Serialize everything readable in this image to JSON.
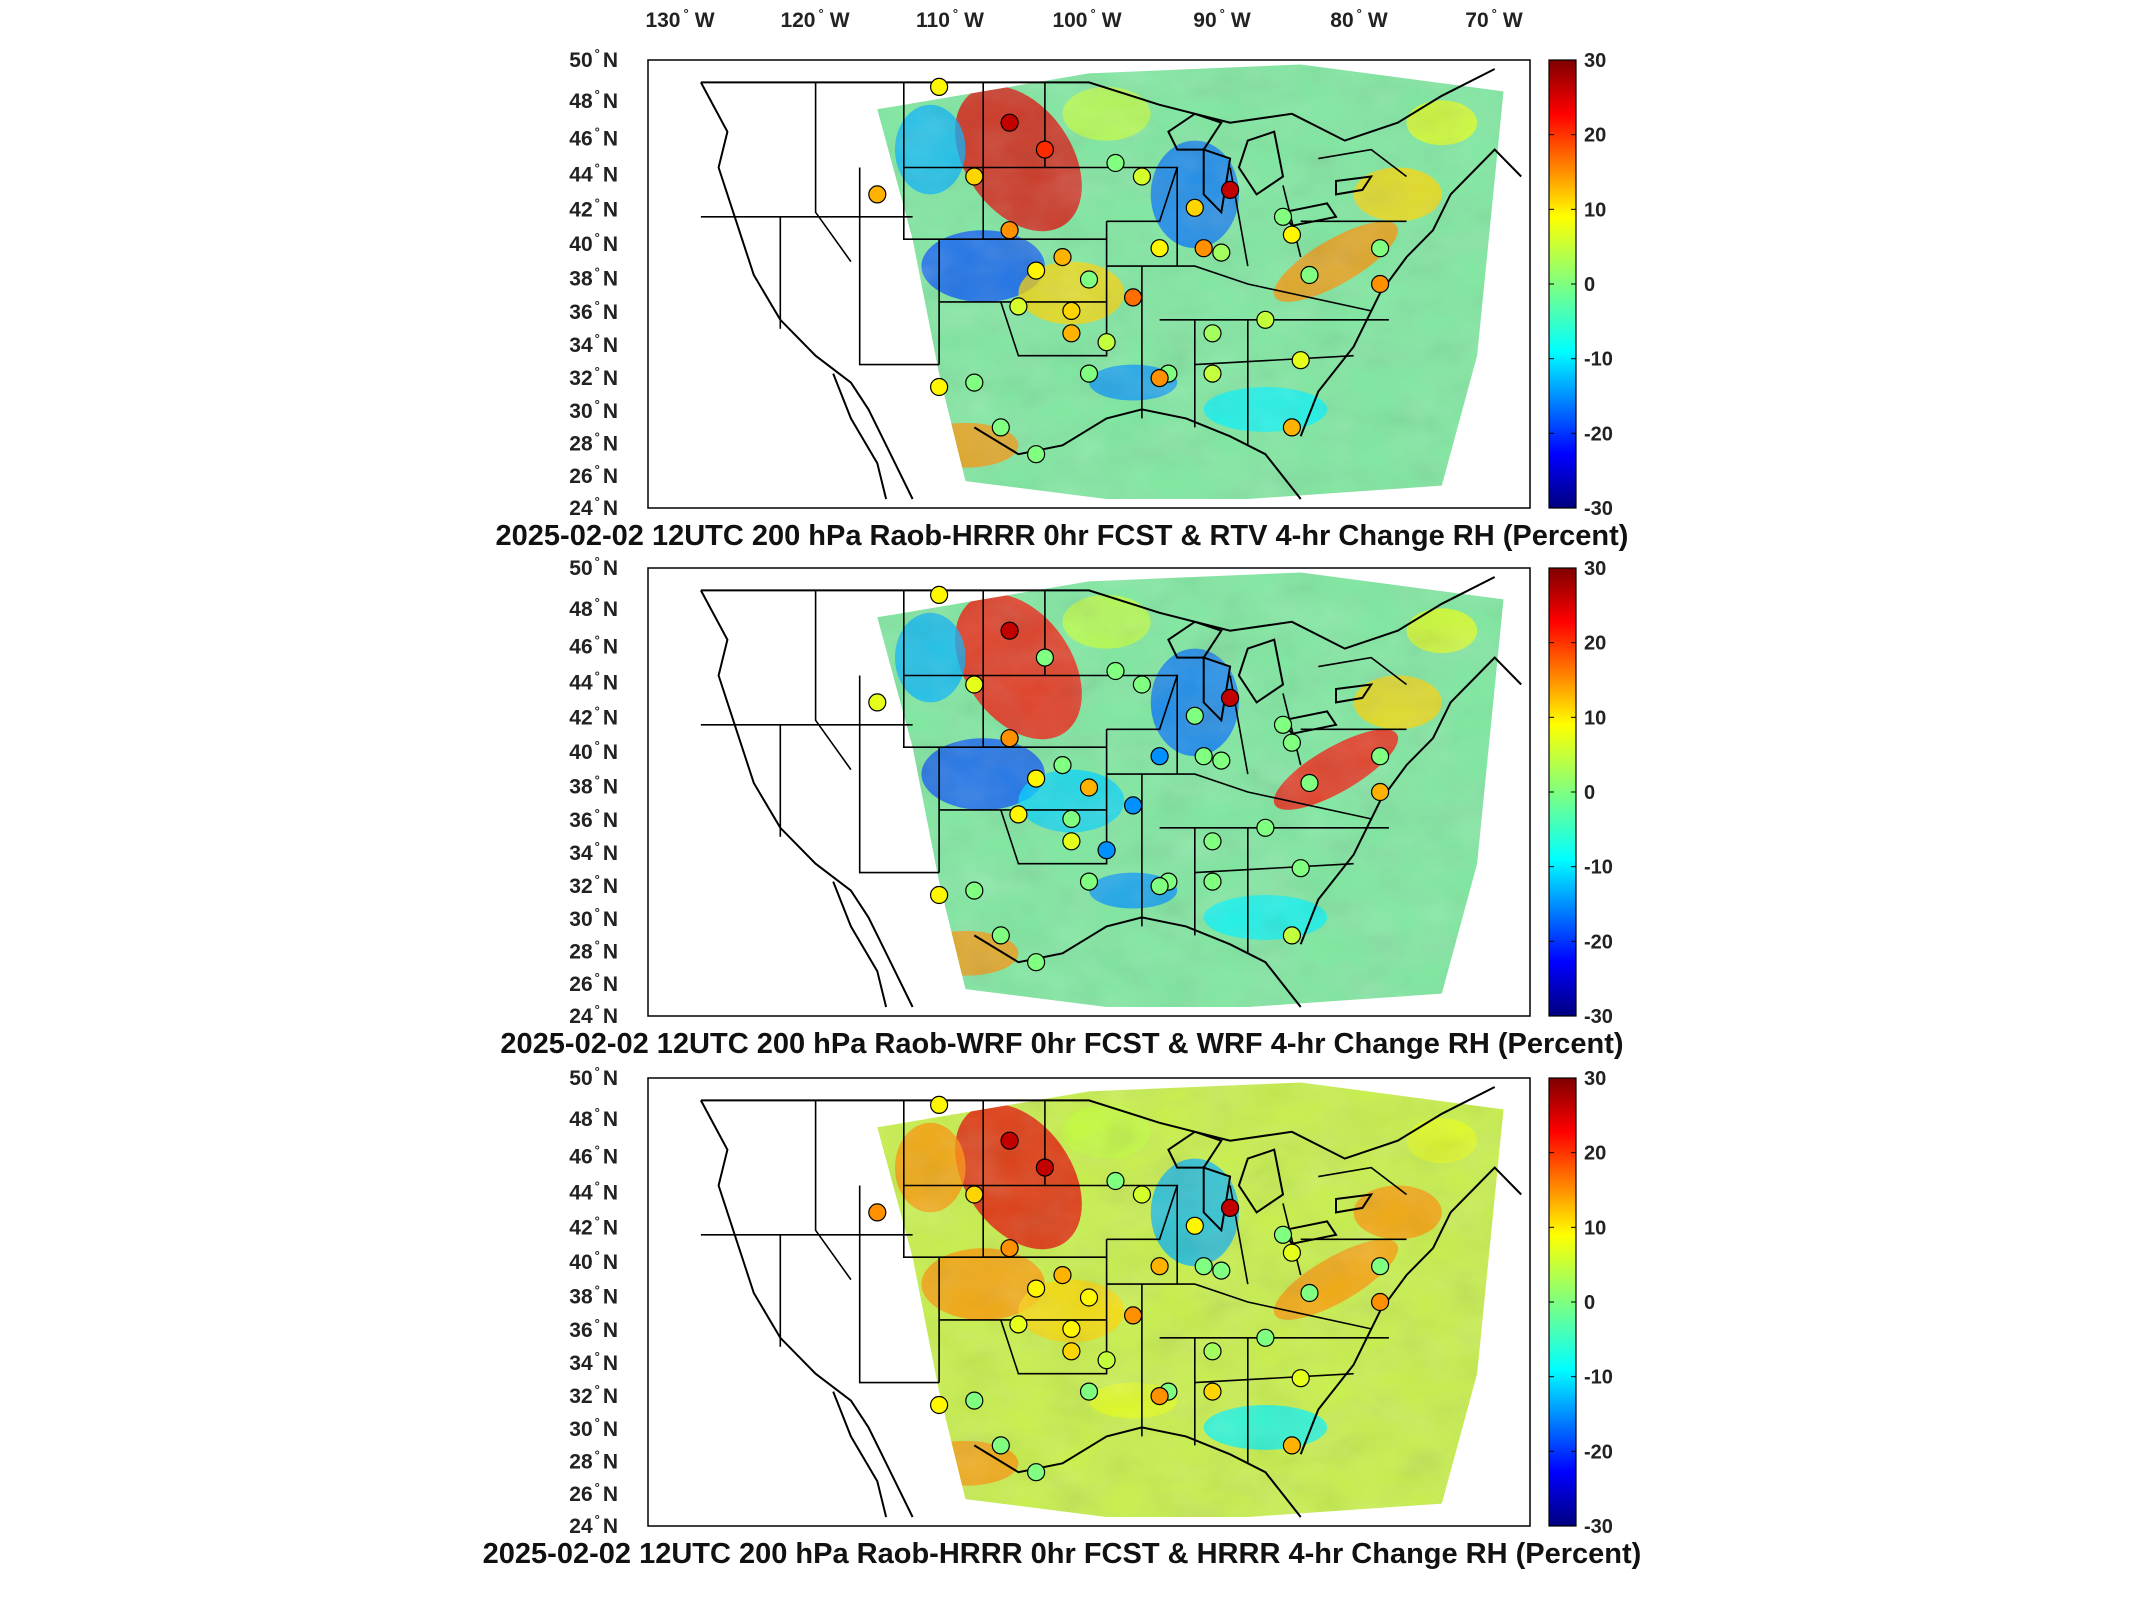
{
  "lon_labels": [
    "130",
    "120",
    "110",
    "100",
    "90",
    "80",
    "70"
  ],
  "lon_hemisphere": "W",
  "lat_labels": [
    "50",
    "48",
    "46",
    "44",
    "42",
    "40",
    "38",
    "36",
    "34",
    "32",
    "30",
    "28",
    "26",
    "24"
  ],
  "lat_hemisphere": "N",
  "degree_symbol": "°",
  "colorbar": {
    "ticks": [
      "30",
      "20",
      "10",
      "0",
      "-10",
      "-20",
      "-30"
    ],
    "min": -30,
    "max": 30,
    "colormap": "jet"
  },
  "panels": [
    {
      "title": "2025-02-02 12UTC 200 hPa Raob-HRRR 0hr FCST & RTV 4-hr Change RH (Percent)",
      "dominant_tone": "mixed"
    },
    {
      "title": "2025-02-02 12UTC 200 hPa Raob-WRF 0hr FCST & WRF 4-hr Change RH (Percent)",
      "dominant_tone": "mixed"
    },
    {
      "title": "2025-02-02 12UTC 200 hPa Raob-HRRR 0hr FCST & HRRR 4-hr Change RH (Percent)",
      "dominant_tone": "warm"
    }
  ],
  "station_values": [
    [
      8,
      26,
      20,
      0,
      10,
      12,
      14,
      5,
      8,
      12,
      0,
      5,
      10,
      12,
      16,
      4,
      8,
      14,
      0,
      10,
      2,
      0,
      4,
      26,
      8,
      0,
      0,
      0,
      0,
      14,
      2,
      4,
      8,
      0,
      6,
      12,
      0,
      14
    ],
    [
      8,
      26,
      0,
      0,
      6,
      6,
      14,
      0,
      8,
      0,
      12,
      8,
      0,
      6,
      -14,
      -14,
      -14,
      0,
      0,
      0,
      0,
      0,
      0,
      26,
      8,
      0,
      0,
      0,
      0,
      0,
      0,
      0,
      0,
      0,
      0,
      4,
      0,
      12
    ],
    [
      8,
      26,
      26,
      0,
      10,
      14,
      14,
      5,
      8,
      12,
      8,
      6,
      8,
      10,
      14,
      4,
      12,
      0,
      0,
      8,
      0,
      0,
      10,
      26,
      8,
      0,
      0,
      0,
      0,
      14,
      2,
      0,
      6,
      0,
      6,
      12,
      0,
      14
    ]
  ],
  "colors": {
    "background": "#ffffff",
    "land_outside_domain": "#ffffff",
    "border_lines": "#000000",
    "station_outline": "#000000"
  }
}
